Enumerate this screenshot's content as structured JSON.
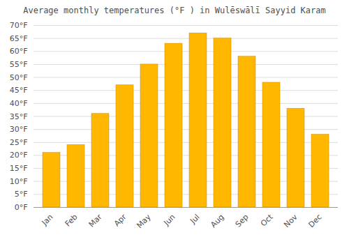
{
  "chart_data": {
    "type": "bar",
    "title": "Average monthly temperatures (°F ) in Wulēswālī Sayyid Karam",
    "categories": [
      "Jan",
      "Feb",
      "Mar",
      "Apr",
      "May",
      "Jun",
      "Jul",
      "Aug",
      "Sep",
      "Oct",
      "Nov",
      "Dec"
    ],
    "values": [
      21,
      24,
      36,
      47,
      55,
      63,
      67,
      65,
      58,
      48,
      38,
      28
    ],
    "color": "#FFB700",
    "ylim": [
      0,
      70
    ],
    "yticks": [
      {
        "value": 0,
        "label": "0°F"
      },
      {
        "value": 5,
        "label": "5°F"
      },
      {
        "value": 10,
        "label": "10°F"
      },
      {
        "value": 15,
        "label": "15°F"
      },
      {
        "value": 20,
        "label": "20°F"
      },
      {
        "value": 25,
        "label": "25°F"
      },
      {
        "value": 30,
        "label": "30°F"
      },
      {
        "value": 35,
        "label": "35°F"
      },
      {
        "value": 40,
        "label": "40°F"
      },
      {
        "value": 45,
        "label": "45°F"
      },
      {
        "value": 50,
        "label": "50°F"
      },
      {
        "value": 55,
        "label": "55°F"
      },
      {
        "value": 60,
        "label": "60°F"
      },
      {
        "value": 65,
        "label": "65°F"
      },
      {
        "value": 70,
        "label": "70°F"
      }
    ],
    "grid": true
  }
}
